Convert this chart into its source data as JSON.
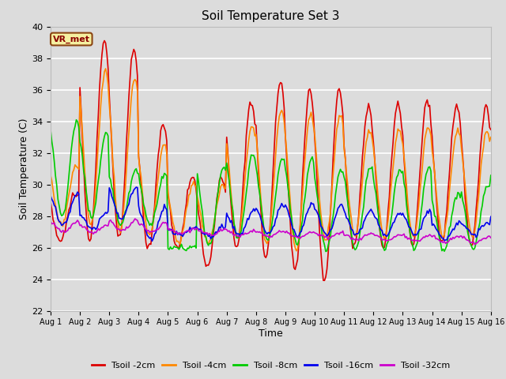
{
  "title": "Soil Temperature Set 3",
  "xlabel": "Time",
  "ylabel": "Soil Temperature (C)",
  "ylim": [
    22,
    40
  ],
  "yticks": [
    22,
    24,
    26,
    28,
    30,
    32,
    34,
    36,
    38,
    40
  ],
  "annotation": "VR_met",
  "bg_color": "#dcdcdc",
  "series": {
    "Tsoil -2cm": {
      "color": "#dd0000",
      "lw": 1.2
    },
    "Tsoil -4cm": {
      "color": "#ff8800",
      "lw": 1.2
    },
    "Tsoil -8cm": {
      "color": "#00cc00",
      "lw": 1.2
    },
    "Tsoil -16cm": {
      "color": "#0000ee",
      "lw": 1.2
    },
    "Tsoil -32cm": {
      "color": "#cc00cc",
      "lw": 1.2
    }
  },
  "xtick_labels": [
    "Aug 1",
    "Aug 2",
    "Aug 3",
    "Aug 4",
    "Aug 5",
    "Aug 6",
    "Aug 7",
    "Aug 8",
    "Aug 9",
    "Aug 10",
    "Aug 11",
    "Aug 12",
    "Aug 13",
    "Aug 14",
    "Aug 15",
    "Aug 16"
  ],
  "num_points": 361,
  "figsize": [
    6.4,
    4.8
  ],
  "dpi": 100
}
